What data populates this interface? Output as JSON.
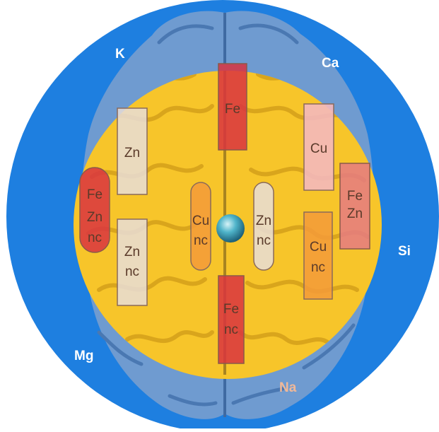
{
  "colors": {
    "outer_ring": "#1e7fe0",
    "inner_disc": "#f7c52a",
    "brain_blue": "#6f9bd0",
    "brain_gold": "#f2c23e",
    "center_sphere": "#3aa9c4",
    "fe": "#d9333f",
    "cu_pink": "#f3b8bd",
    "cu_orange": "#f39a3a",
    "zn": "#e8ddd8",
    "fe_zn": "#e57a82"
  },
  "outer_labels": {
    "k": "K",
    "ca": "Ca",
    "si": "Si",
    "mg": "Mg",
    "na": "Na"
  },
  "regions": {
    "fe_top": "Fe",
    "zn_left": "Zn",
    "cu_right": "Cu",
    "fe_zn_right": {
      "line1": "Fe",
      "line2": "Zn"
    },
    "fe_zn_nc_left": {
      "line1": "Fe",
      "line2": "Zn",
      "line3": "nc"
    },
    "cu_nc_center": {
      "line1": "Cu",
      "line2": "nc"
    },
    "zn_nc_center": {
      "line1": "Zn",
      "line2": "nc"
    },
    "zn_nc_left": {
      "line1": "Zn",
      "line2": "nc"
    },
    "cu_nc_right": {
      "line1": "Cu",
      "line2": "nc"
    },
    "fe_nc_bottom": {
      "line1": "Fe",
      "line2": "nc"
    }
  }
}
